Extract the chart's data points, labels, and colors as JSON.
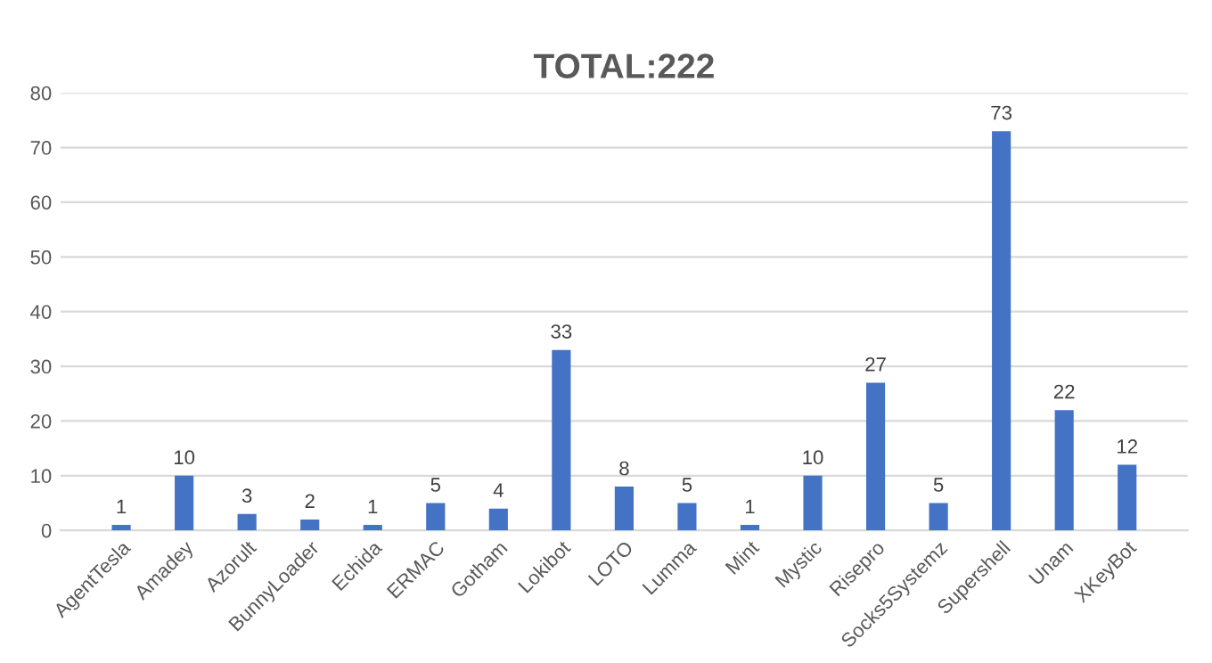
{
  "chart_data": {
    "type": "bar",
    "title": "TOTAL:222",
    "categories": [
      "AgentTesla",
      "Amadey",
      "Azorult",
      "BunnyLoader",
      "Echida",
      "ERMAC",
      "Gotham",
      "Lokibot",
      "LOTO",
      "Lumma",
      "Mint",
      "Mystic",
      "Risepro",
      "Socks5Systemz",
      "Supershell",
      "Unam",
      "XKeyBot"
    ],
    "values": [
      1,
      10,
      3,
      2,
      1,
      5,
      4,
      33,
      8,
      5,
      1,
      10,
      27,
      5,
      73,
      22,
      12
    ],
    "color": "#4472c4",
    "ylim": [
      0,
      80
    ],
    "yticks": [
      0,
      10,
      20,
      30,
      40,
      50,
      60,
      70,
      80
    ],
    "grid": "y",
    "data_labels": true
  }
}
